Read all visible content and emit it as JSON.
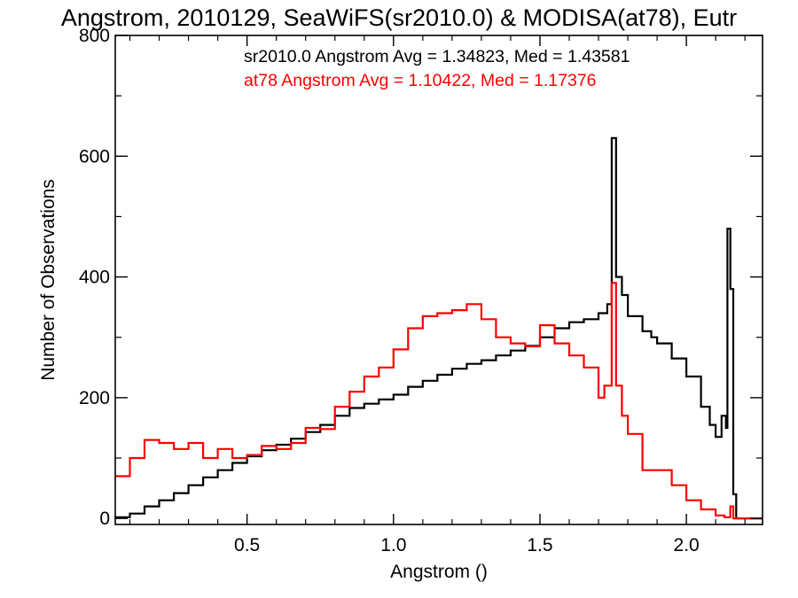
{
  "chart_data": {
    "type": "line",
    "title": "Angstrom, 2010129, SeaWiFS(sr2010.0) & MODISA(at78), Eutr",
    "xlabel": "Angstrom ()",
    "ylabel": "Number of Observations",
    "xlim": [
      0.05,
      2.26
    ],
    "ylim": [
      -10,
      800
    ],
    "xticks": [
      0.5,
      1.0,
      1.5,
      2.0
    ],
    "xtick_labels": [
      "0.5",
      "1.0",
      "1.5",
      "2.0"
    ],
    "yticks": [
      0,
      200,
      400,
      600,
      800
    ],
    "ytick_labels": [
      "0",
      "200",
      "400",
      "600",
      "800"
    ],
    "grid": false,
    "step": true,
    "annotations": [
      {
        "text": "sr2010.0 Angstrom Avg = 1.34823, Med = 1.43581",
        "color": "#000000"
      },
      {
        "text": "at78 Angstrom Avg = 1.10422, Med = 1.17376",
        "color": "#ff0000"
      }
    ],
    "series": [
      {
        "color": "#000000",
        "points": [
          [
            0.05,
            2
          ],
          [
            0.1,
            8
          ],
          [
            0.15,
            20
          ],
          [
            0.2,
            30
          ],
          [
            0.25,
            42
          ],
          [
            0.3,
            55
          ],
          [
            0.35,
            68
          ],
          [
            0.4,
            80
          ],
          [
            0.45,
            92
          ],
          [
            0.5,
            103
          ],
          [
            0.55,
            113
          ],
          [
            0.6,
            122
          ],
          [
            0.65,
            132
          ],
          [
            0.7,
            143
          ],
          [
            0.75,
            155
          ],
          [
            0.8,
            170
          ],
          [
            0.85,
            183
          ],
          [
            0.9,
            190
          ],
          [
            0.95,
            197
          ],
          [
            1.0,
            205
          ],
          [
            1.05,
            218
          ],
          [
            1.1,
            228
          ],
          [
            1.15,
            238
          ],
          [
            1.2,
            248
          ],
          [
            1.25,
            256
          ],
          [
            1.3,
            262
          ],
          [
            1.35,
            270
          ],
          [
            1.4,
            278
          ],
          [
            1.45,
            286
          ],
          [
            1.5,
            300
          ],
          [
            1.55,
            315
          ],
          [
            1.6,
            325
          ],
          [
            1.65,
            330
          ],
          [
            1.7,
            340
          ],
          [
            1.73,
            355
          ],
          [
            1.745,
            630
          ],
          [
            1.76,
            400
          ],
          [
            1.78,
            370
          ],
          [
            1.8,
            335
          ],
          [
            1.85,
            310
          ],
          [
            1.88,
            300
          ],
          [
            1.9,
            290
          ],
          [
            1.95,
            265
          ],
          [
            2.0,
            235
          ],
          [
            2.05,
            185
          ],
          [
            2.08,
            155
          ],
          [
            2.1,
            135
          ],
          [
            2.12,
            170
          ],
          [
            2.135,
            150
          ],
          [
            2.14,
            480
          ],
          [
            2.15,
            380
          ],
          [
            2.16,
            40
          ],
          [
            2.17,
            0
          ],
          [
            2.26,
            0
          ]
        ]
      },
      {
        "color": "#ff0000",
        "points": [
          [
            0.05,
            70
          ],
          [
            0.1,
            100
          ],
          [
            0.15,
            130
          ],
          [
            0.2,
            125
          ],
          [
            0.25,
            115
          ],
          [
            0.3,
            125
          ],
          [
            0.35,
            100
          ],
          [
            0.4,
            115
          ],
          [
            0.45,
            100
          ],
          [
            0.5,
            105
          ],
          [
            0.55,
            120
          ],
          [
            0.6,
            115
          ],
          [
            0.65,
            125
          ],
          [
            0.7,
            150
          ],
          [
            0.75,
            148
          ],
          [
            0.8,
            185
          ],
          [
            0.85,
            210
          ],
          [
            0.9,
            235
          ],
          [
            0.95,
            250
          ],
          [
            1.0,
            280
          ],
          [
            1.05,
            315
          ],
          [
            1.1,
            335
          ],
          [
            1.15,
            340
          ],
          [
            1.2,
            345
          ],
          [
            1.25,
            355
          ],
          [
            1.3,
            330
          ],
          [
            1.35,
            300
          ],
          [
            1.4,
            290
          ],
          [
            1.45,
            285
          ],
          [
            1.5,
            320
          ],
          [
            1.55,
            290
          ],
          [
            1.6,
            270
          ],
          [
            1.65,
            250
          ],
          [
            1.7,
            200
          ],
          [
            1.72,
            220
          ],
          [
            1.745,
            390
          ],
          [
            1.76,
            220
          ],
          [
            1.78,
            170
          ],
          [
            1.8,
            140
          ],
          [
            1.85,
            80
          ],
          [
            1.9,
            80
          ],
          [
            1.95,
            55
          ],
          [
            2.0,
            30
          ],
          [
            2.05,
            15
          ],
          [
            2.1,
            5
          ],
          [
            2.13,
            2
          ],
          [
            2.15,
            20
          ],
          [
            2.16,
            0
          ],
          [
            2.26,
            0
          ]
        ]
      }
    ]
  }
}
